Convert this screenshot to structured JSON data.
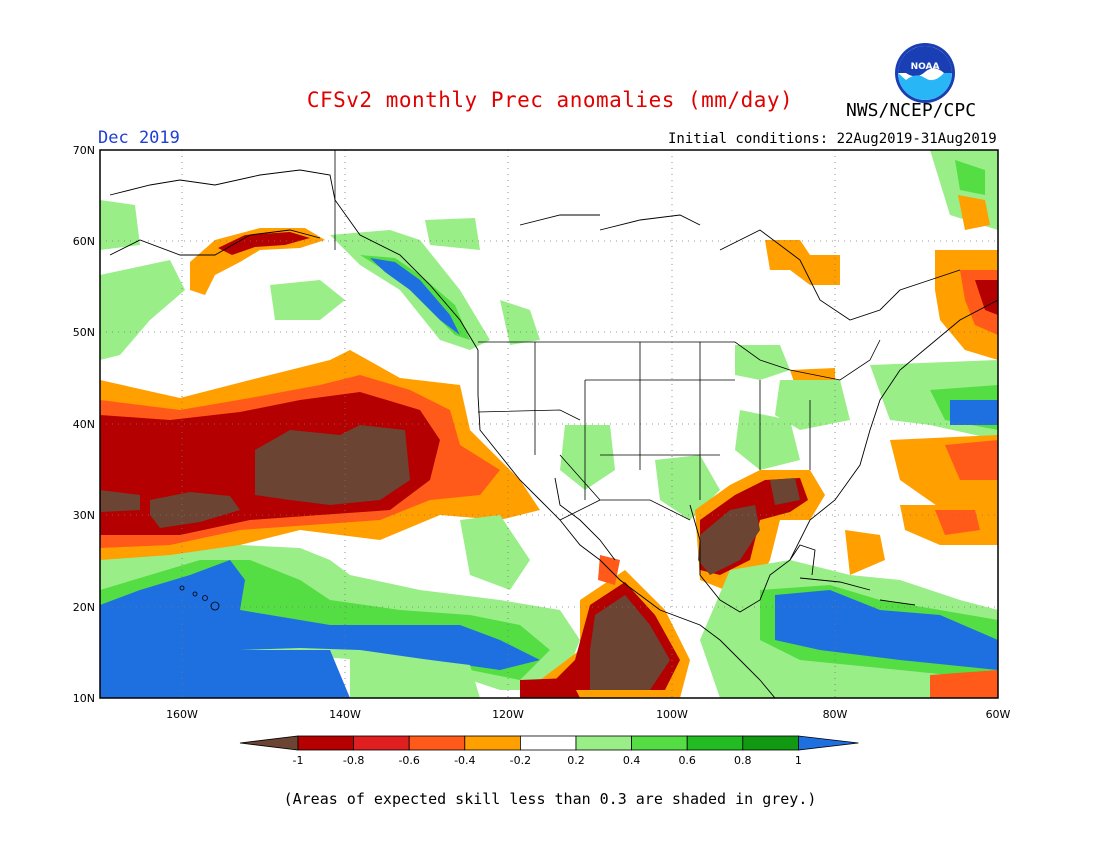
{
  "header": {
    "title": "CFSv2 monthly Prec anomalies (mm/day)",
    "agency": "NWS/NCEP/CPC",
    "logo_text": "NOAA",
    "month_label": "Dec 2019",
    "initial_conditions": "Initial conditions: 22Aug2019-31Aug2019"
  },
  "map": {
    "projection": "equirectangular",
    "lon_range": [
      -170,
      -60
    ],
    "lat_range": [
      10,
      70
    ],
    "lat_labels": [
      "10N",
      "20N",
      "30N",
      "40N",
      "50N",
      "60N",
      "70N"
    ],
    "lon_labels": [
      "160W",
      "140W",
      "120W",
      "100W",
      "80W",
      "60W"
    ],
    "grid": "dotted"
  },
  "colorbar": {
    "labels": [
      "-1",
      "-0.8",
      "-0.6",
      "-0.4",
      "-0.2",
      "0.2",
      "0.4",
      "0.6",
      "0.8",
      "1"
    ],
    "colors": [
      "#6b4433",
      "#b40000",
      "#e02020",
      "#ff5a1a",
      "#ff9f00",
      "#ffffff",
      "#99ee88",
      "#55dd44",
      "#22bb22",
      "#119911",
      "#1e6fe0"
    ]
  },
  "anomaly_regions": [
    {
      "color": "#ff9f00",
      "region": "NE Pacific band"
    },
    {
      "color": "#b40000",
      "region": "NE Pacific core"
    },
    {
      "color": "#6b4433",
      "region": "NE Pacific extreme"
    },
    {
      "color": "#1e6fe0",
      "region": "Hawaii / central Pacific"
    },
    {
      "color": "#1e6fe0",
      "region": "Caribbean"
    },
    {
      "color": "#6b4433",
      "region": "Gulf of Mexico"
    },
    {
      "color": "#6b4433",
      "region": "Eastern Pacific off Mexico"
    }
  ],
  "footer": {
    "note": "(Areas of expected skill less than 0.3 are shaded in grey.)"
  }
}
